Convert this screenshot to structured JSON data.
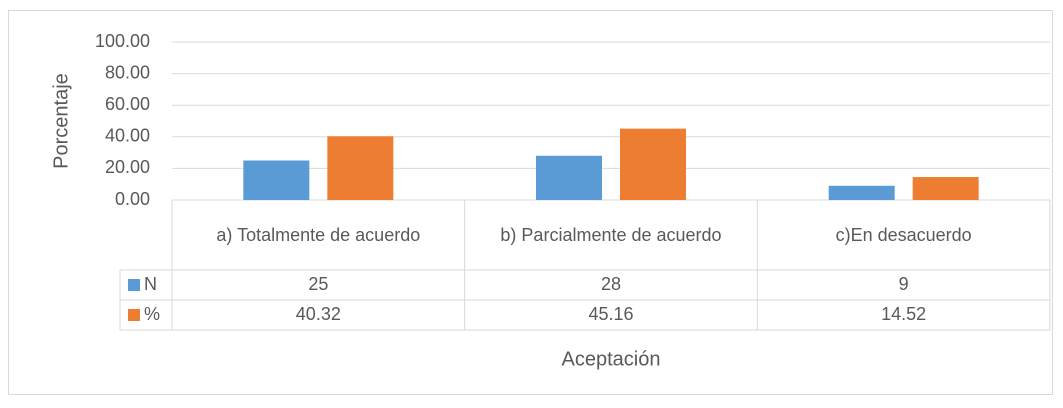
{
  "chart_data": {
    "type": "bar",
    "categories": [
      "a) Totalmente de acuerdo",
      "b) Parcialmente de acuerdo",
      "c)En desacuerdo"
    ],
    "series": [
      {
        "name": "N",
        "color": "#5b9bd5",
        "values": [
          25,
          28,
          9
        ]
      },
      {
        "name": "%",
        "color": "#ed7d31",
        "values": [
          40.32,
          45.16,
          14.52
        ]
      }
    ],
    "ylabel": "Porcentaje",
    "xlabel": "Aceptación",
    "ylim": [
      0,
      100
    ],
    "yticks": [
      {
        "value": 0,
        "label": "0.00"
      },
      {
        "value": 20,
        "label": "20.00"
      },
      {
        "value": 40,
        "label": "40.00"
      },
      {
        "value": 60,
        "label": "60.00"
      },
      {
        "value": 80,
        "label": "80.00"
      },
      {
        "value": 100,
        "label": "100.00"
      }
    ],
    "grid": true,
    "data_table": true
  }
}
